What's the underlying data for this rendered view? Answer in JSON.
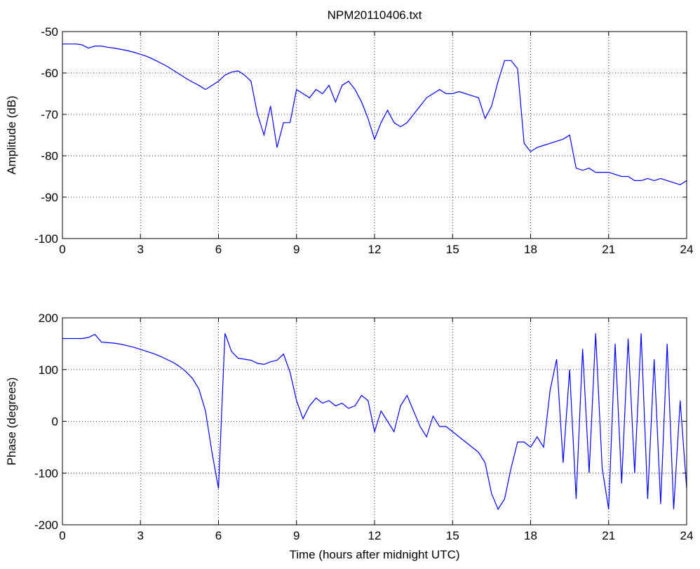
{
  "chart_data": [
    {
      "type": "line",
      "title": "NPM20110406.txt",
      "ylabel": "Amplitude (dB)",
      "xlim": [
        0,
        24
      ],
      "xticks": [
        0,
        3,
        6,
        9,
        12,
        15,
        18,
        21,
        24
      ],
      "ylim": [
        -100,
        -50
      ],
      "yticks": [
        -100,
        -90,
        -80,
        -70,
        -60,
        -50
      ],
      "grid": true,
      "x": [
        0,
        0.25,
        0.5,
        0.75,
        1,
        1.25,
        1.5,
        1.75,
        2,
        2.25,
        2.5,
        2.75,
        3,
        3.25,
        3.5,
        3.75,
        4,
        4.25,
        4.5,
        4.75,
        5,
        5.25,
        5.5,
        5.75,
        6,
        6.25,
        6.5,
        6.75,
        7,
        7.25,
        7.5,
        7.75,
        8,
        8.25,
        8.5,
        8.75,
        9,
        9.25,
        9.5,
        9.75,
        10,
        10.25,
        10.5,
        10.75,
        11,
        11.25,
        11.5,
        11.75,
        12,
        12.25,
        12.5,
        12.75,
        13,
        13.25,
        13.5,
        13.75,
        14,
        14.25,
        14.5,
        14.75,
        15,
        15.25,
        15.5,
        15.75,
        16,
        16.25,
        16.5,
        16.75,
        17,
        17.25,
        17.5,
        17.75,
        18,
        18.25,
        18.5,
        18.75,
        19,
        19.25,
        19.5,
        19.75,
        20,
        20.25,
        20.5,
        20.75,
        21,
        21.25,
        21.5,
        21.75,
        22,
        22.25,
        22.5,
        22.75,
        23,
        23.25,
        23.5,
        23.75,
        24
      ],
      "series": [
        {
          "color": "#0000ff",
          "values": [
            -53,
            -53,
            -53,
            -53.2,
            -54,
            -53.5,
            -53.5,
            -53.8,
            -54,
            -54.3,
            -54.6,
            -55,
            -55.5,
            -56,
            -56.7,
            -57.5,
            -58.3,
            -59.3,
            -60.3,
            -61.3,
            -62.2,
            -63,
            -64,
            -63,
            -62,
            -60.5,
            -59.8,
            -59.5,
            -60.5,
            -62,
            -70,
            -75,
            -68,
            -78,
            -72,
            -72,
            -64,
            -65,
            -66,
            -64,
            -65,
            -63,
            -67,
            -63,
            -62,
            -64,
            -67,
            -71,
            -76,
            -72,
            -69,
            -72,
            -73,
            -72,
            -70,
            -68,
            -66,
            -65,
            -64,
            -65,
            -65,
            -64.5,
            -65,
            -65.5,
            -66,
            -71,
            -68,
            -62,
            -57,
            -57,
            -59,
            -77,
            -79,
            -78,
            -77.5,
            -77,
            -76.5,
            -76,
            -75,
            -83,
            -83.5,
            -83,
            -84,
            -84,
            -84,
            -84.5,
            -85,
            -85,
            -86,
            -86,
            -85.5,
            -86,
            -85.5,
            -86,
            -86.5,
            -87,
            -86
          ]
        }
      ]
    },
    {
      "type": "line",
      "ylabel": "Phase (degrees)",
      "xlabel": "Time (hours after midnight UTC)",
      "xlim": [
        0,
        24
      ],
      "xticks": [
        0,
        3,
        6,
        9,
        12,
        15,
        18,
        21,
        24
      ],
      "ylim": [
        -200,
        200
      ],
      "yticks": [
        -200,
        -100,
        0,
        100,
        200
      ],
      "grid": true,
      "x": [
        0,
        0.25,
        0.5,
        0.75,
        1,
        1.25,
        1.5,
        1.75,
        2,
        2.25,
        2.5,
        2.75,
        3,
        3.25,
        3.5,
        3.75,
        4,
        4.25,
        4.5,
        4.75,
        5,
        5.25,
        5.5,
        5.75,
        6,
        6.25,
        6.5,
        6.75,
        7,
        7.25,
        7.5,
        7.75,
        8,
        8.25,
        8.5,
        8.75,
        9,
        9.25,
        9.5,
        9.75,
        10,
        10.25,
        10.5,
        10.75,
        11,
        11.25,
        11.5,
        11.75,
        12,
        12.25,
        12.5,
        12.75,
        13,
        13.25,
        13.5,
        13.75,
        14,
        14.25,
        14.5,
        14.75,
        15,
        15.25,
        15.5,
        15.75,
        16,
        16.25,
        16.5,
        16.75,
        17,
        17.25,
        17.5,
        17.75,
        18,
        18.25,
        18.5,
        18.75,
        19,
        19.25,
        19.5,
        19.75,
        20,
        20.25,
        20.5,
        20.75,
        21,
        21.25,
        21.5,
        21.75,
        22,
        22.25,
        22.5,
        22.75,
        23,
        23.25,
        23.5,
        23.75,
        24
      ],
      "series": [
        {
          "color": "#0000ff",
          "values": [
            160,
            160,
            160,
            160,
            162,
            168,
            153,
            152,
            151,
            149,
            146,
            143,
            139,
            135,
            131,
            126,
            120,
            114,
            106,
            96,
            83,
            62,
            20,
            -60,
            -130,
            170,
            135,
            122,
            120,
            118,
            112,
            110,
            115,
            118,
            130,
            95,
            40,
            5,
            30,
            45,
            35,
            40,
            30,
            35,
            25,
            30,
            50,
            40,
            -20,
            20,
            0,
            -20,
            30,
            50,
            20,
            -10,
            -30,
            10,
            -10,
            -10,
            -20,
            -30,
            -40,
            -50,
            -60,
            -80,
            -140,
            -170,
            -150,
            -90,
            -40,
            -40,
            -50,
            -30,
            -50,
            60,
            120,
            -80,
            100,
            -150,
            140,
            -100,
            170,
            -90,
            -170,
            150,
            -120,
            160,
            -100,
            170,
            -150,
            120,
            -160,
            150,
            -170,
            40,
            -130
          ]
        }
      ]
    }
  ]
}
